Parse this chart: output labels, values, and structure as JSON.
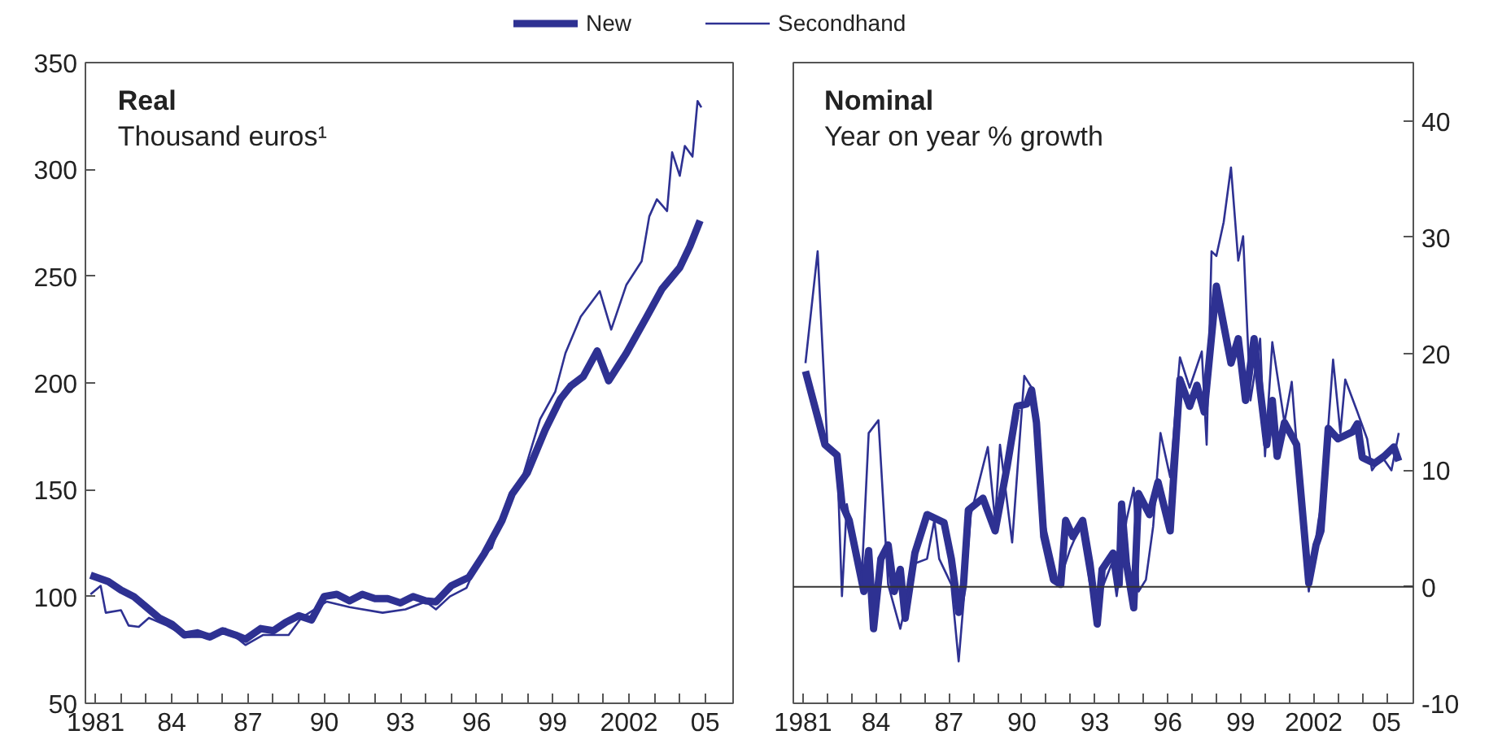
{
  "chart_data": [
    {
      "type": "line",
      "title": "Real",
      "subtitle": "Thousand euros¹",
      "legend": "top",
      "grid": false,
      "line_style": "solid",
      "xlim": [
        1980.6,
        2006.1
      ],
      "ylim": [
        50,
        350
      ],
      "yticks": [
        50,
        100,
        150,
        200,
        250,
        300,
        350
      ],
      "xticks": [
        {
          "value": 1981,
          "label": "1981"
        },
        {
          "value": 1982,
          "label": null
        },
        {
          "value": 1983,
          "label": null
        },
        {
          "value": 1984,
          "label": "84"
        },
        {
          "value": 1985,
          "label": null
        },
        {
          "value": 1986,
          "label": null
        },
        {
          "value": 1987,
          "label": "87"
        },
        {
          "value": 1988,
          "label": null
        },
        {
          "value": 1989,
          "label": null
        },
        {
          "value": 1990,
          "label": "90"
        },
        {
          "value": 1991,
          "label": null
        },
        {
          "value": 1992,
          "label": null
        },
        {
          "value": 1993,
          "label": "93"
        },
        {
          "value": 1994,
          "label": null
        },
        {
          "value": 1995,
          "label": null
        },
        {
          "value": 1996,
          "label": "96"
        },
        {
          "value": 1997,
          "label": null
        },
        {
          "value": 1998,
          "label": null
        },
        {
          "value": 1999,
          "label": "99"
        },
        {
          "value": 2000,
          "label": null
        },
        {
          "value": 2001,
          "label": null
        },
        {
          "value": 2002,
          "label": "2002"
        },
        {
          "value": 2003,
          "label": null
        },
        {
          "value": 2004,
          "label": null
        },
        {
          "value": 2005,
          "label": "05"
        }
      ],
      "series": [
        {
          "name": "New",
          "color": "#2e3192",
          "x": [
            1980.8,
            1981.5,
            1982,
            1982.5,
            1983,
            1983.5,
            1984,
            1984.5,
            1985,
            1985.5,
            1986,
            1986.5,
            1986.9,
            1987.5,
            1988,
            1988.5,
            1989,
            1989.5,
            1990,
            1990.5,
            1991,
            1991.5,
            1992,
            1992.5,
            1993,
            1993.5,
            1994,
            1994.4,
            1995,
            1995.7,
            1996.3,
            1997,
            1997.4,
            1998,
            1998.7,
            1999.3,
            1999.7,
            2000.2,
            2000.75,
            2001.2,
            2001.9,
            2002.7,
            2003.3,
            2004,
            2004.4,
            2004.8
          ],
          "values": [
            110,
            107,
            103,
            100,
            95,
            90,
            87,
            82,
            83,
            81,
            84,
            82,
            80,
            85,
            84,
            88,
            91,
            89,
            100,
            101,
            98,
            101,
            99,
            99,
            97,
            100,
            98,
            97.5,
            105,
            109,
            120,
            135.5,
            148,
            158,
            178,
            192.5,
            198.5,
            203,
            215,
            201,
            214,
            231,
            244,
            254,
            264,
            276
          ]
        },
        {
          "color": "#2e3192",
          "x": [
            1980.8,
            1981.2,
            1981.4,
            1982,
            1982.3,
            1982.7,
            1983.1,
            1983.8,
            1984.6,
            1985.5,
            1986.1,
            1986.9,
            1987.6,
            1988.6,
            1989.1,
            1990.1,
            1991,
            1992.3,
            1993.2,
            1994,
            1994.4,
            1994.95,
            1995.6,
            1996.1,
            1996.6,
            1997.3,
            1997.8,
            1998.5,
            1999.1,
            1999.5,
            2000.1,
            2000.85,
            2001.3,
            2001.9,
            2002.5,
            2002.8,
            2003.1,
            2003.5,
            2003.7,
            2004,
            2004.2,
            2004.5,
            2004.7,
            2004.85
          ],
          "values": [
            101,
            105,
            92.4,
            93.6,
            86.4,
            85.8,
            90,
            86.4,
            81,
            81,
            85,
            77.3,
            82,
            82,
            90,
            97.6,
            95,
            92.4,
            94,
            97.6,
            94,
            100,
            104,
            117.6,
            122.7,
            148,
            155.5,
            183,
            196,
            214,
            231,
            243,
            225,
            246,
            257,
            278,
            286,
            280.5,
            308,
            297,
            311,
            306,
            332,
            329
          ]
        }
      ]
    },
    {
      "type": "line",
      "title": "Nominal",
      "subtitle": "Year on year % growth",
      "legend": "top",
      "grid": false,
      "line_style": "solid",
      "xlim": [
        1980.6,
        2006.1
      ],
      "ylim": [
        -10,
        45
      ],
      "yticks": [
        -10,
        0,
        10,
        20,
        30,
        40
      ],
      "xticks": [
        {
          "value": 1981,
          "label": "1981"
        },
        {
          "value": 1982,
          "label": null
        },
        {
          "value": 1983,
          "label": null
        },
        {
          "value": 1984,
          "label": "84"
        },
        {
          "value": 1985,
          "label": null
        },
        {
          "value": 1986,
          "label": null
        },
        {
          "value": 1987,
          "label": "87"
        },
        {
          "value": 1988,
          "label": null
        },
        {
          "value": 1989,
          "label": null
        },
        {
          "value": 1990,
          "label": "90"
        },
        {
          "value": 1991,
          "label": null
        },
        {
          "value": 1992,
          "label": null
        },
        {
          "value": 1993,
          "label": "93"
        },
        {
          "value": 1994,
          "label": null
        },
        {
          "value": 1995,
          "label": null
        },
        {
          "value": 1996,
          "label": "96"
        },
        {
          "value": 1997,
          "label": null
        },
        {
          "value": 1998,
          "label": null
        },
        {
          "value": 1999,
          "label": "99"
        },
        {
          "value": 2000,
          "label": null
        },
        {
          "value": 2001,
          "label": null
        },
        {
          "value": 2002,
          "label": "2002"
        },
        {
          "value": 2003,
          "label": null
        },
        {
          "value": 2004,
          "label": null
        },
        {
          "value": 2005,
          "label": "05"
        }
      ],
      "ref_lines": [
        {
          "axis": "y",
          "value": 0,
          "color": "#333333"
        }
      ],
      "series": [
        {
          "color": "#2e3192",
          "x": [
            1981.1,
            1981.9,
            1982.4,
            1982.6,
            1982.9,
            1983.5,
            1983.7,
            1983.9,
            1984.2,
            1984.5,
            1984.75,
            1985,
            1985.2,
            1985.6,
            1986.1,
            1986.8,
            1987.1,
            1987.4,
            1987.6,
            1987.8,
            1988.4,
            1988.9,
            1989.4,
            1989.8,
            1990.2,
            1990.4,
            1990.6,
            1990.9,
            1991.3,
            1991.6,
            1991.8,
            1992.1,
            1992.5,
            1992.8,
            1993.1,
            1993.3,
            1993.75,
            1994,
            1994.1,
            1994.3,
            1994.6,
            1994.8,
            1995.25,
            1995.6,
            1996.1,
            1996.5,
            1996.9,
            1997.2,
            1997.5,
            1998,
            1998.6,
            1998.9,
            1999.2,
            1999.55,
            2000.07,
            2000.3,
            2000.5,
            2000.8,
            2001.3,
            2001.8,
            2002.1,
            2002.3,
            2002.6,
            2003,
            2003.6,
            2003.8,
            2004,
            2004.5,
            2004.9,
            2005.3,
            2005.5
          ],
          "values": [
            18.5,
            12.2,
            11.3,
            7.1,
            5.7,
            -0.4,
            3.1,
            -3.6,
            2.4,
            3.6,
            -0.4,
            1.5,
            -2.7,
            2.9,
            6.2,
            5.5,
            2.4,
            -2.2,
            0.2,
            6.6,
            7.6,
            4.8,
            10.4,
            15.5,
            15.7,
            16.9,
            14.1,
            4.3,
            0.6,
            0.2,
            5.7,
            4.3,
            5.7,
            2,
            -3.2,
            1.5,
            2.9,
            0.2,
            7.1,
            2,
            -1.8,
            8,
            6.2,
            9,
            4.8,
            17.8,
            15.5,
            17.3,
            15,
            25.8,
            19.2,
            21.3,
            16,
            21.3,
            12.2,
            16,
            11.2,
            14.1,
            12.2,
            0.3,
            3.6,
            4.8,
            13.6,
            12.7,
            13.3,
            14,
            11.1,
            10.6,
            11.2,
            12,
            10.8
          ]
        },
        {
          "name": "Secondhand",
          "color": "#2e3192",
          "x": [
            1981.1,
            1981.6,
            1982,
            1982.4,
            1982.6,
            1982.8,
            1983.4,
            1983.7,
            1984.1,
            1984.5,
            1985,
            1985.6,
            1986.1,
            1986.4,
            1986.6,
            1987.1,
            1987.4,
            1987.9,
            1988.6,
            1988.9,
            1989.1,
            1989.6,
            1990.1,
            1990.4,
            1990.9,
            1991.5,
            1992,
            1992.4,
            1992.8,
            1993.1,
            1993.7,
            1993.9,
            1994.3,
            1994.6,
            1994.8,
            1995.1,
            1995.4,
            1995.7,
            1996.1,
            1996.5,
            1996.9,
            1997.4,
            1997.6,
            1997.8,
            1998,
            1998.3,
            1998.6,
            1998.9,
            1999.1,
            1999.4,
            1999.8,
            2000,
            2000.3,
            2000.8,
            2001.1,
            2001.3,
            2001.8,
            2002.2,
            2002.4,
            2002.8,
            2003.1,
            2003.3,
            2003.8,
            2004.2,
            2004.4,
            2004.8,
            2005.2,
            2005.5
          ],
          "values": [
            19.2,
            28.8,
            12.2,
            11.3,
            -0.8,
            7.1,
            0.2,
            13.2,
            14.3,
            0.2,
            -3.6,
            2,
            2.4,
            5.7,
            2.4,
            0.2,
            -6.4,
            6.2,
            12,
            5.7,
            12.2,
            3.8,
            18.1,
            17.1,
            5.7,
            0.2,
            3.3,
            5.2,
            0.2,
            -1.2,
            2,
            -0.8,
            5.7,
            8.5,
            -0.4,
            0.6,
            5.2,
            13.2,
            9.4,
            19.7,
            17.1,
            20.2,
            12.2,
            28.8,
            28.4,
            31.3,
            36,
            28,
            30.1,
            16,
            21.3,
            11.2,
            21,
            14.1,
            17.6,
            12.2,
            -0.4,
            5.7,
            8,
            19.5,
            13.2,
            17.8,
            15,
            12.7,
            10,
            11.2,
            10,
            13.2
          ]
        }
      ]
    }
  ]
}
